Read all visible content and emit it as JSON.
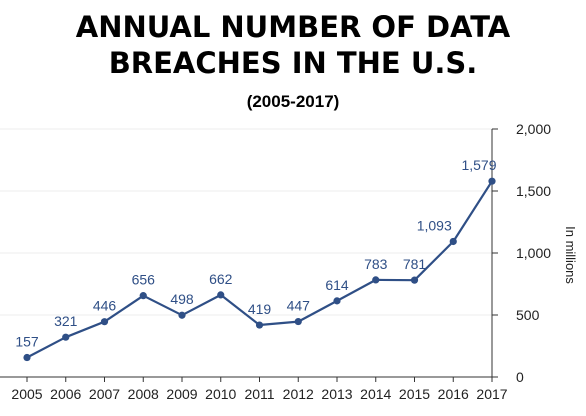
{
  "chart_data": {
    "type": "line",
    "title_line1": "ANNUAL NUMBER OF DATA",
    "title_line2": "BREACHES IN THE U.S.",
    "subtitle": "(2005-2017)",
    "xlabel": "",
    "ylabel": "In millions",
    "x": [
      "2005",
      "2006",
      "2007",
      "2008",
      "2009",
      "2010",
      "2011",
      "2012",
      "2013",
      "2014",
      "2015",
      "2016",
      "2017"
    ],
    "values": [
      157,
      321,
      446,
      656,
      498,
      662,
      419,
      447,
      614,
      783,
      781,
      1093,
      1579
    ],
    "data_labels": [
      "157",
      "321",
      "446",
      "656",
      "498",
      "662",
      "419",
      "447",
      "614",
      "783",
      "781",
      "1,093",
      "1,579"
    ],
    "y_ticks": [
      0,
      500,
      1000,
      1500,
      2000
    ],
    "y_tick_labels": [
      "0",
      "500",
      "1,000",
      "1,500",
      "2,000"
    ],
    "ylim": [
      0,
      2000
    ],
    "y_axis_side": "right",
    "grid": true,
    "line_color": "#2f4f86",
    "grid_color": "#eeeeee"
  }
}
